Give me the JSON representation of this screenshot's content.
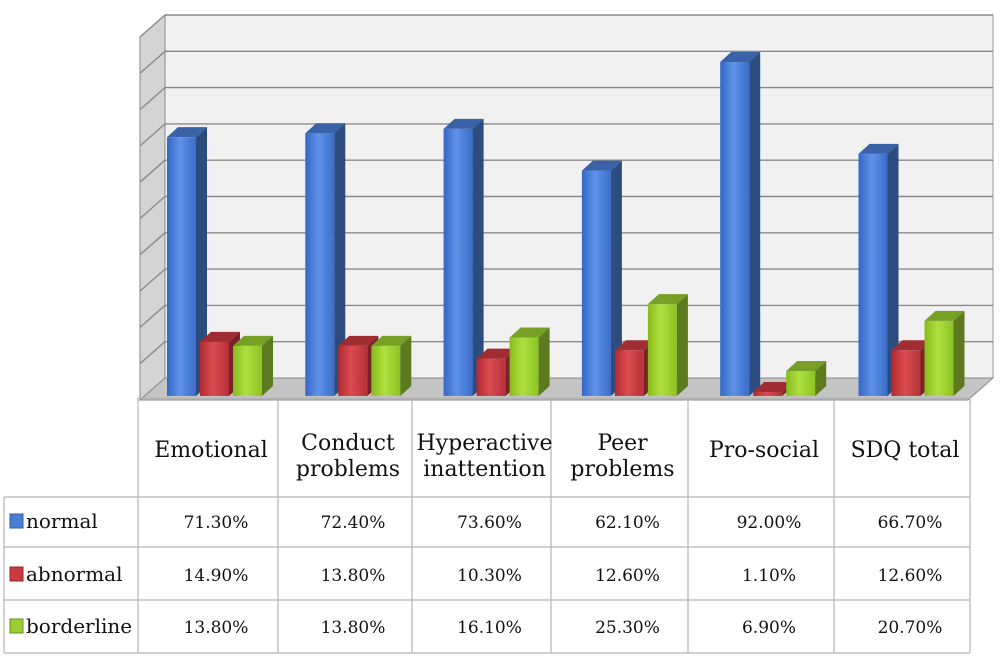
{
  "chart_data": {
    "type": "bar",
    "categories": [
      "Emotional",
      "Conduct problems",
      "Hyperactive inattention",
      "Peer problems",
      "Pro-social",
      "SDQ total"
    ],
    "category_lines": [
      [
        "Emotional"
      ],
      [
        "Conduct",
        "problems"
      ],
      [
        "Hyperactive",
        "inattention"
      ],
      [
        "Peer",
        "problems"
      ],
      [
        "Pro-social"
      ],
      [
        "SDQ total"
      ]
    ],
    "series": [
      {
        "name": "normal",
        "values": [
          71.3,
          72.4,
          73.6,
          62.1,
          92.0,
          66.7
        ],
        "labels": [
          "71.30%",
          "72.40%",
          "73.60%",
          "62.10%",
          "92.00%",
          "66.70%"
        ],
        "color": "#4a7fd6"
      },
      {
        "name": "abnormal",
        "values": [
          14.9,
          13.8,
          10.3,
          12.6,
          1.1,
          12.6
        ],
        "labels": [
          "14.90%",
          "13.80%",
          "10.30%",
          "12.60%",
          "1.10%",
          "12.60%"
        ],
        "color": "#cc3a3f"
      },
      {
        "name": "borderline",
        "values": [
          13.8,
          13.8,
          16.1,
          25.3,
          6.9,
          20.7
        ],
        "labels": [
          "13.80%",
          "13.80%",
          "16.10%",
          "25.30%",
          "6.90%",
          "20.70%"
        ],
        "color": "#9acd32"
      }
    ],
    "ylim": [
      0,
      100
    ],
    "grid": true,
    "legend": "data-table",
    "style": "3d-column"
  }
}
